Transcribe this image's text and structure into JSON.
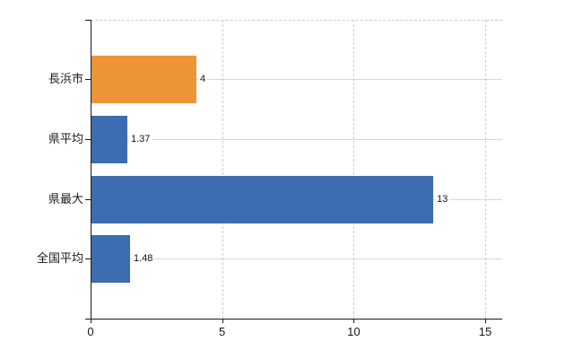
{
  "chart_data": {
    "type": "bar",
    "orientation": "horizontal",
    "categories": [
      "長浜市",
      "県平均",
      "県最大",
      "全国平均"
    ],
    "values": [
      4,
      1.37,
      13,
      1.48
    ],
    "value_labels": [
      "4",
      "1.37",
      "13",
      "1.48"
    ],
    "bar_colors": [
      "#ed9439",
      "#3d6db0",
      "#3d6db0",
      "#3d6db0"
    ],
    "highlight_color": "#ed9439",
    "default_bar_color": "#3d6db0",
    "x_ticks": [
      0,
      5,
      10,
      15
    ],
    "x_tick_labels": [
      "0",
      "5",
      "10",
      "15"
    ],
    "xlim": [
      0,
      15.65
    ],
    "grid": true,
    "grid_color": "#d9d9d9",
    "dashed_grid_color": "#cfcfcf",
    "axis_color": "#1a1a1a",
    "background_color": "#ffffff",
    "legend": "none"
  }
}
